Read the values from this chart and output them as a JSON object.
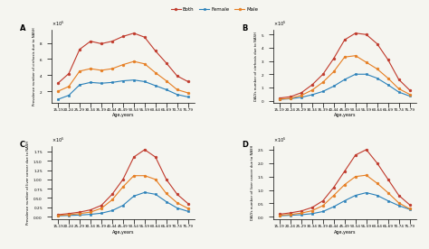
{
  "age_groups": [
    "15-19",
    "20-24",
    "25-29",
    "30-34",
    "35-39",
    "40-44",
    "45-49",
    "50-54",
    "55-59",
    "60-64",
    "65-69",
    "70-74",
    "75-79"
  ],
  "colors": {
    "both": "#c0392b",
    "female": "#2980b9",
    "male": "#e67e22"
  },
  "legend_labels": [
    "Both",
    "Female",
    "Male"
  ],
  "panel_A": {
    "label": "A",
    "ylabel": "Prevalence number of cirrhosis due to NASH",
    "both": [
      300000,
      420000,
      720000,
      820000,
      790000,
      820000,
      880000,
      920000,
      870000,
      700000,
      550000,
      390000,
      320000
    ],
    "female": [
      100000,
      150000,
      280000,
      310000,
      300000,
      310000,
      330000,
      340000,
      320000,
      270000,
      220000,
      160000,
      130000
    ],
    "male": [
      200000,
      260000,
      450000,
      480000,
      460000,
      480000,
      530000,
      570000,
      540000,
      430000,
      330000,
      220000,
      180000
    ]
  },
  "panel_B": {
    "label": "B",
    "ylabel": "DALYs number of cirrhosis due to NASH",
    "both": [
      20000,
      30000,
      60000,
      120000,
      200000,
      320000,
      460000,
      510000,
      500000,
      430000,
      310000,
      160000,
      80000
    ],
    "female": [
      10000,
      15000,
      25000,
      45000,
      70000,
      110000,
      160000,
      200000,
      200000,
      170000,
      120000,
      65000,
      35000
    ],
    "male": [
      12000,
      18000,
      40000,
      80000,
      140000,
      220000,
      330000,
      340000,
      290000,
      240000,
      170000,
      90000,
      48000
    ]
  },
  "panel_C": {
    "label": "C",
    "ylabel": "Prevalence number of liver cancer due to NASH",
    "both": [
      5000,
      8000,
      12000,
      18000,
      30000,
      60000,
      100000,
      160000,
      180000,
      160000,
      100000,
      60000,
      35000
    ],
    "female": [
      2000,
      3000,
      4000,
      6000,
      9000,
      16000,
      30000,
      55000,
      65000,
      60000,
      40000,
      23000,
      14000
    ],
    "male": [
      3000,
      5000,
      8000,
      12000,
      22000,
      45000,
      80000,
      110000,
      110000,
      100000,
      62000,
      37000,
      22000
    ]
  },
  "panel_D": {
    "label": "D",
    "ylabel": "DALYs number of liver cancer due to NASH",
    "both": [
      10000,
      15000,
      22000,
      35000,
      60000,
      110000,
      170000,
      230000,
      250000,
      200000,
      140000,
      80000,
      45000
    ],
    "female": [
      4000,
      6000,
      8000,
      12000,
      20000,
      38000,
      60000,
      80000,
      90000,
      80000,
      60000,
      42000,
      28000
    ],
    "male": [
      6000,
      9000,
      14000,
      23000,
      42000,
      80000,
      120000,
      150000,
      155000,
      125000,
      90000,
      52000,
      30000
    ]
  },
  "background_color": "#f5f5f0"
}
